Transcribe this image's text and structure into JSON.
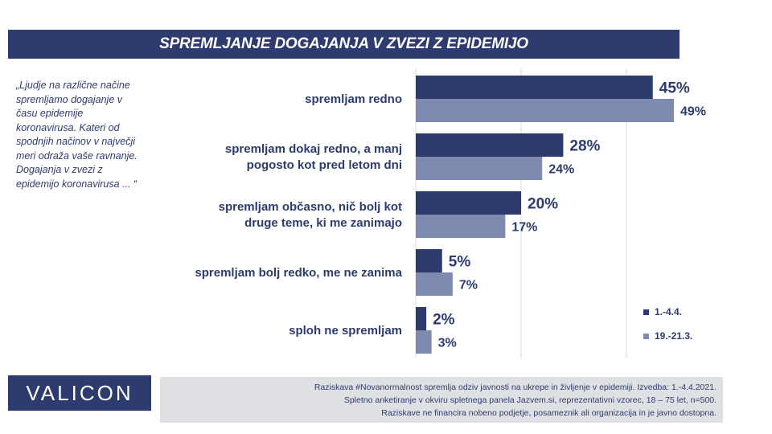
{
  "header": {
    "title": "SPREMLJANJE DOGAJANJA V ZVEZI Z EPIDEMIJO"
  },
  "question": {
    "lines": [
      "„Ljudje na različne načine",
      "spremljamo dogajanje v",
      "času epidemije",
      "koronavirusa.  Kateri od",
      "spodnjih načinov v največji",
      "meri odraža vaše ravnanje.",
      "Dogajanja v zvezi z",
      "epidemijo koronavirusa ... “"
    ]
  },
  "chart_data": {
    "type": "bar",
    "orientation": "horizontal",
    "categories": [
      [
        "spremljam redno"
      ],
      [
        "spremljam dokaj redno, a manj",
        "pogosto kot pred letom dni"
      ],
      [
        "spremljam občasno, nič bolj kot",
        "druge teme, ki me zanimajo"
      ],
      [
        "spremljam bolj redko, me ne zanima"
      ],
      [
        "sploh ne spremljam"
      ]
    ],
    "series": [
      {
        "name": "1.-4.4.",
        "values": [
          45,
          28,
          20,
          5,
          2
        ],
        "color": "#2d3b6e"
      },
      {
        "name": "19.-21.3.",
        "values": [
          49,
          24,
          17,
          7,
          3
        ],
        "color": "#7e8aae"
      }
    ],
    "value_suffix": "%",
    "xlim": [
      0,
      60
    ],
    "grid": true,
    "legend": "bottom-right"
  },
  "brand": {
    "logo_text": "VALICON"
  },
  "footer": {
    "lines": [
      "Raziskava #Novanormalnost spremlja odziv javnosti na ukrepe in življenje v epidemiji. Izvedba: 1.-4.4.2021.",
      "Spletno anketiranje v okviru spletnega panela Jazvem.si, reprezentativni vzorec, 18 – 75 let, n=500.",
      "Raziskave ne financira nobeno podjetje, posameznik ali organizacija in je javno dostopna."
    ]
  }
}
